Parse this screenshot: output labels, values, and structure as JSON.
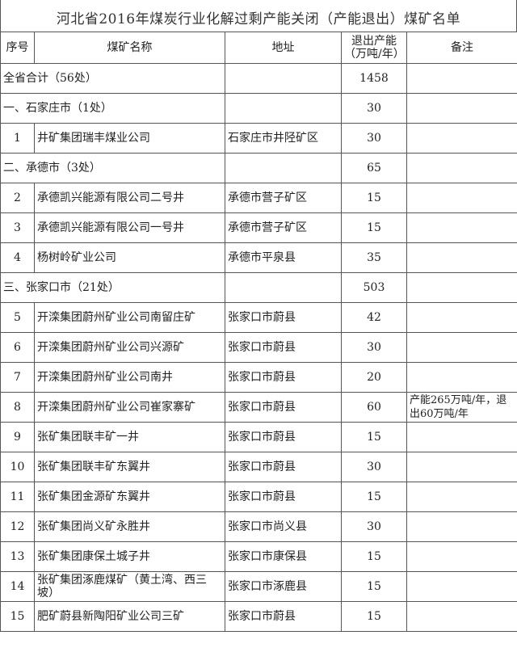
{
  "title": "河北省2016年煤炭行业化解过剩产能关闭（产能退出）煤矿名单",
  "headers": {
    "index": "序号",
    "name": "煤矿名称",
    "address": "地址",
    "capacity": "退出产能（万吨/年）",
    "note": "备注"
  },
  "rows": [
    {
      "type": "summary",
      "name": "全省合计（56处）",
      "address": "",
      "capacity": "1458",
      "note": ""
    },
    {
      "type": "group",
      "name": "一、石家庄市（1处）",
      "address": "",
      "capacity": "30",
      "note": ""
    },
    {
      "type": "item",
      "index": "1",
      "name": "井矿集团瑞丰煤业公司",
      "address": "石家庄市井陉矿区",
      "capacity": "30",
      "note": ""
    },
    {
      "type": "group",
      "name": "二、承德市（3处）",
      "address": "",
      "capacity": "65",
      "note": ""
    },
    {
      "type": "item",
      "index": "2",
      "name": "承德凯兴能源有限公司二号井",
      "address": "承德市营子矿区",
      "capacity": "15",
      "note": ""
    },
    {
      "type": "item",
      "index": "3",
      "name": "承德凯兴能源有限公司一号井",
      "address": "承德市营子矿区",
      "capacity": "15",
      "note": ""
    },
    {
      "type": "item",
      "index": "4",
      "name": "杨树岭矿业公司",
      "address": "承德市平泉县",
      "capacity": "35",
      "note": ""
    },
    {
      "type": "group",
      "name": "三、张家口市（21处）",
      "address": "",
      "capacity": "503",
      "note": ""
    },
    {
      "type": "item",
      "index": "5",
      "name": "开滦集团蔚州矿业公司南留庄矿",
      "address": "张家口市蔚县",
      "capacity": "42",
      "note": ""
    },
    {
      "type": "item",
      "index": "6",
      "name": "开滦集团蔚州矿业公司兴源矿",
      "address": "张家口市蔚县",
      "capacity": "30",
      "note": ""
    },
    {
      "type": "item",
      "index": "7",
      "name": "开滦集团蔚州矿业公司南井",
      "address": "张家口市蔚县",
      "capacity": "20",
      "note": ""
    },
    {
      "type": "item",
      "index": "8",
      "name": "开滦集团蔚州矿业公司崔家寨矿",
      "address": "张家口市蔚县",
      "capacity": "60",
      "note": "产能265万吨/年，退出60万吨/年"
    },
    {
      "type": "item",
      "index": "9",
      "name": "张矿集团联丰矿一井",
      "address": "张家口市蔚县",
      "capacity": "15",
      "note": ""
    },
    {
      "type": "item",
      "index": "10",
      "name": "张矿集团联丰矿东翼井",
      "address": "张家口市蔚县",
      "capacity": "30",
      "note": ""
    },
    {
      "type": "item",
      "index": "11",
      "name": "张矿集团金源矿东翼井",
      "address": "张家口市蔚县",
      "capacity": "15",
      "note": ""
    },
    {
      "type": "item",
      "index": "12",
      "name": "张矿集团尚义矿永胜井",
      "address": "张家口市尚义县",
      "capacity": "30",
      "note": ""
    },
    {
      "type": "item",
      "index": "13",
      "name": "张矿集团康保土城子井",
      "address": "张家口市康保县",
      "capacity": "15",
      "note": ""
    },
    {
      "type": "item",
      "index": "14",
      "name": "张矿集团涿鹿煤矿（黄土湾、西三坡）",
      "address": "张家口市涿鹿县",
      "capacity": "15",
      "note": ""
    },
    {
      "type": "item",
      "index": "15",
      "name": "肥矿蔚县新陶阳矿业公司三矿",
      "address": "张家口市蔚县",
      "capacity": "15",
      "note": ""
    }
  ]
}
